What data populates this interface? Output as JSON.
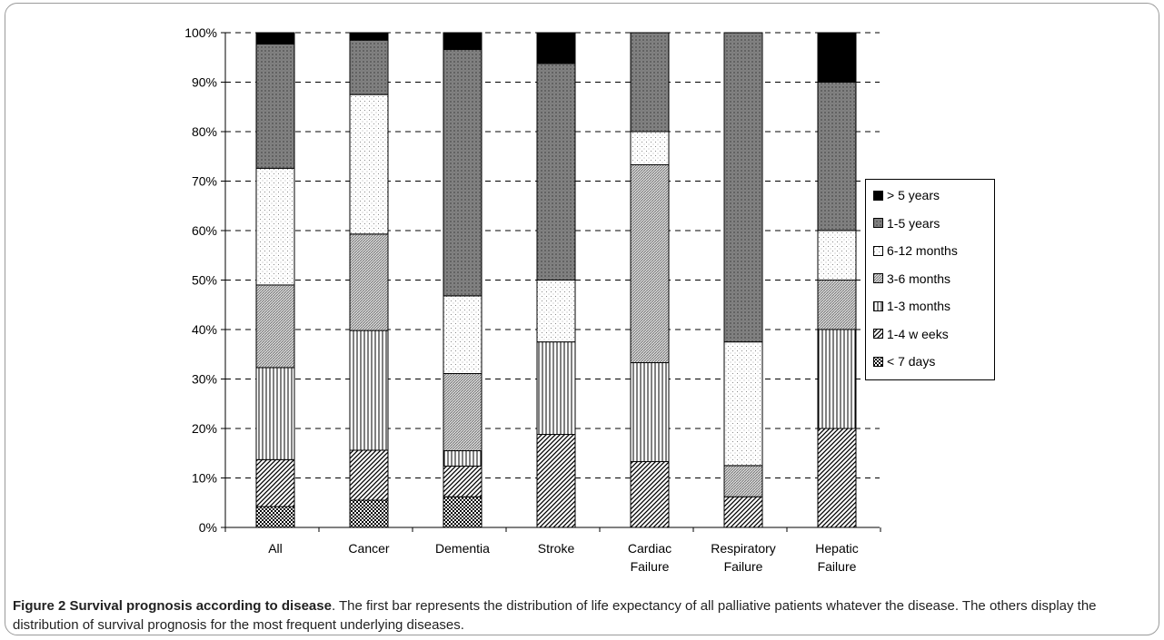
{
  "chart_data": {
    "type": "bar",
    "stacked": true,
    "percent": true,
    "categories": [
      [
        "All"
      ],
      [
        "Cancer"
      ],
      [
        "Dementia"
      ],
      [
        "Stroke"
      ],
      [
        "Cardiac",
        "Failure"
      ],
      [
        "Respiratory",
        "Failure"
      ],
      [
        "Hepatic",
        "Failure"
      ]
    ],
    "series": [
      {
        "name": "< 7 days",
        "pattern": "checker",
        "values": [
          4.2,
          5.5,
          6.2,
          0,
          0,
          0,
          0
        ]
      },
      {
        "name": "1-4 w eeks",
        "pattern": "diag-dense",
        "values": [
          9.5,
          10.1,
          6.2,
          18.8,
          13.3,
          6.2,
          20.0
        ]
      },
      {
        "name": "1-3 months",
        "pattern": "vertical",
        "values": [
          18.6,
          24.2,
          3.1,
          18.7,
          20.0,
          0,
          20.0
        ]
      },
      {
        "name": "3-6 months",
        "pattern": "diag-light",
        "values": [
          16.7,
          19.5,
          15.6,
          0,
          40.0,
          6.3,
          10.0
        ]
      },
      {
        "name": "6-12 months",
        "pattern": "dots",
        "values": [
          23.6,
          28.2,
          15.7,
          12.5,
          6.7,
          25.0,
          10.0
        ]
      },
      {
        "name": "1-5 years",
        "pattern": "crosshatch",
        "values": [
          25.1,
          11.0,
          49.8,
          43.8,
          20.0,
          62.5,
          30.0
        ]
      },
      {
        "name": "> 5 years",
        "pattern": "solid",
        "values": [
          2.3,
          1.5,
          3.4,
          6.2,
          0,
          0,
          10.0
        ]
      }
    ],
    "yticks": [
      "0%",
      "10%",
      "20%",
      "30%",
      "40%",
      "50%",
      "60%",
      "70%",
      "80%",
      "90%",
      "100%"
    ],
    "ylim": [
      0,
      100
    ],
    "grid": "horizontal dashed",
    "legend_position": "right",
    "colors": {
      "ink": "#000000",
      "dark_fill": "#777777"
    }
  },
  "legend_items": [
    "> 5 years",
    "1-5 years",
    "6-12 months",
    "3-6 months",
    "1-3 months",
    "1-4 w eeks",
    "< 7 days"
  ],
  "caption": {
    "bold": "Figure 2 Survival prognosis according to disease",
    "text": ". The first bar represents the distribution of life expectancy of all palliative patients whatever the disease. The others display the distribution of survival prognosis for the most frequent underlying diseases."
  }
}
